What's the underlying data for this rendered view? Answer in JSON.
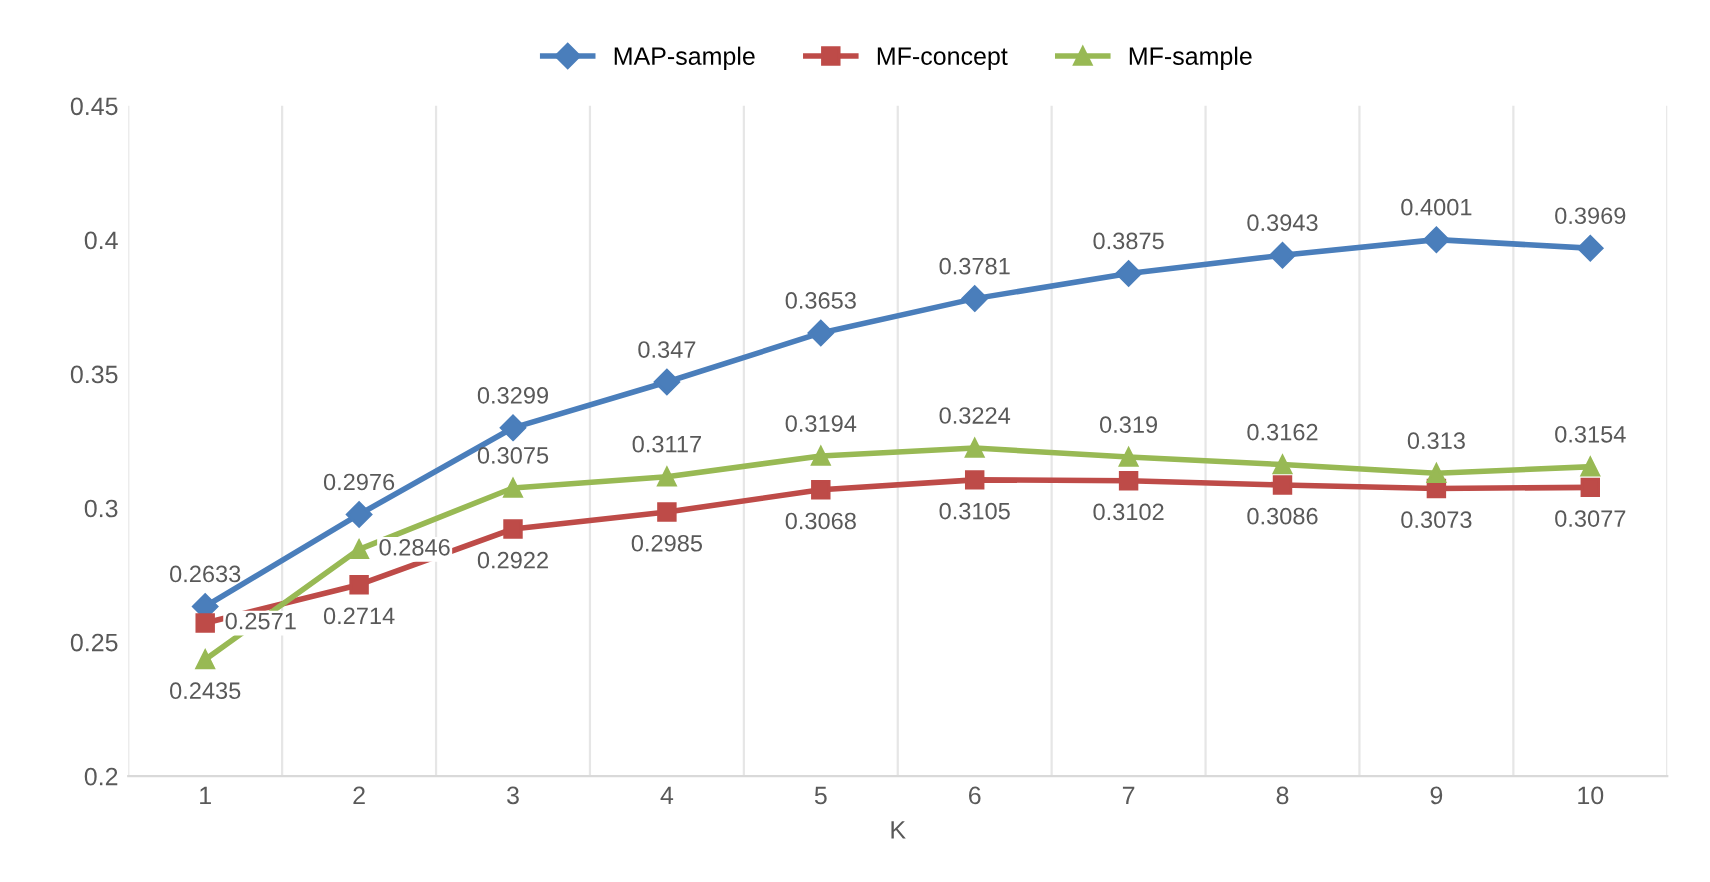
{
  "chart_data": {
    "type": "line",
    "xlabel": "K",
    "categories": [
      "1",
      "2",
      "3",
      "4",
      "5",
      "6",
      "7",
      "8",
      "9",
      "10"
    ],
    "series": [
      {
        "name": "MAP-sample",
        "color": "#4a7ebb",
        "marker": "diamond",
        "values": [
          0.2633,
          0.2976,
          0.3299,
          0.347,
          0.3653,
          0.3781,
          0.3875,
          0.3943,
          0.4001,
          0.3969
        ]
      },
      {
        "name": "MF-concept",
        "color": "#be4b48",
        "marker": "square",
        "values": [
          0.2571,
          0.2714,
          0.2922,
          0.2985,
          0.3068,
          0.3105,
          0.3102,
          0.3086,
          0.3073,
          0.3077
        ]
      },
      {
        "name": "MF-sample",
        "color": "#98b954",
        "marker": "triangle",
        "values": [
          0.2435,
          0.2846,
          0.3075,
          0.3117,
          0.3194,
          0.3224,
          0.319,
          0.3162,
          0.313,
          0.3154
        ]
      }
    ],
    "ylim": [
      0.2,
      0.45
    ],
    "yticks": [
      0.2,
      0.25,
      0.3,
      0.35,
      0.4,
      0.45
    ],
    "data_labels": true,
    "legend": "top",
    "grid": "x"
  }
}
